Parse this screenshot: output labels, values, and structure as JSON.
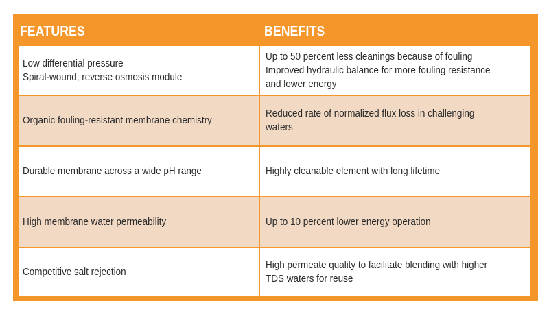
{
  "header": {
    "features_label": "FEATURES",
    "benefits_label": "BENEFITS"
  },
  "rows": [
    {
      "feature": "Low differential pressure\nSpiral-wound, reverse osmosis module",
      "benefit": "Up to 50 percent less cleanings because of fouling\nImproved hydraulic balance for more fouling resistance\nand lower energy"
    },
    {
      "feature": "Organic fouling-resistant membrane chemistry",
      "benefit": "Reduced rate of normalized flux loss in challenging\nwaters"
    },
    {
      "feature": "Durable membrane across a wide pH range",
      "benefit": "Highly cleanable element with long lifetime"
    },
    {
      "feature": "High membrane water permeability",
      "benefit": "Up to 10 percent lower energy operation"
    },
    {
      "feature": "Competitive salt rejection",
      "benefit": "High permeate quality to facilitate blending with higher\nTDS waters for reuse"
    }
  ],
  "colors": {
    "frame": "#f5962a",
    "row_light": "#ffffff",
    "row_dark": "#f2d9c4",
    "header_text": "#ffffff",
    "body_text": "#2b2b2b"
  }
}
